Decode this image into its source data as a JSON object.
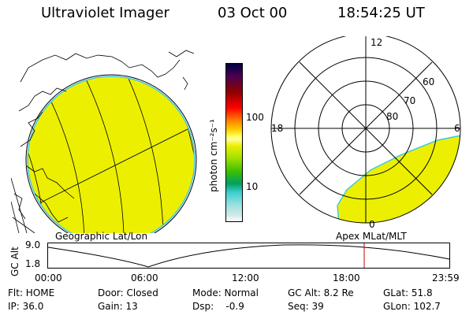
{
  "header": {
    "title": "Ultraviolet Imager",
    "date": "03 Oct 00",
    "time": "18:54:25 UT"
  },
  "colorbar": {
    "label": "photon cm⁻²s⁻¹",
    "tick_labels": [
      "100",
      "10"
    ]
  },
  "panels": {
    "left_label": "Geographic Lat/Lon",
    "right_label": "Apex MLat/MLT"
  },
  "polar": {
    "mlt_labels": [
      "12",
      "18",
      "6",
      "0"
    ],
    "mlat_labels": [
      "60",
      "70",
      "80"
    ]
  },
  "altitude_plot": {
    "ylabel": "GC Alt",
    "y_ticks": [
      "9.0",
      "1.8"
    ],
    "x_ticks": [
      "00:00",
      "06:00",
      "12:00",
      "18:00",
      "23:59"
    ],
    "current_time_marker": "18:54"
  },
  "info": {
    "rows": [
      [
        "Flt: HOME",
        "Door: Closed",
        "Mode: Normal",
        "GC Alt: 8.2 Re",
        "GLat:  51.8"
      ],
      [
        "IP: 36.0",
        "Gain: 13",
        "Dsp:    -0.9",
        "Seq: 39",
        "GLon: 102.7"
      ]
    ]
  },
  "colors": {
    "image_fill": "#ecf000",
    "limb": "#40c8e0",
    "marker": "#cc0000"
  }
}
